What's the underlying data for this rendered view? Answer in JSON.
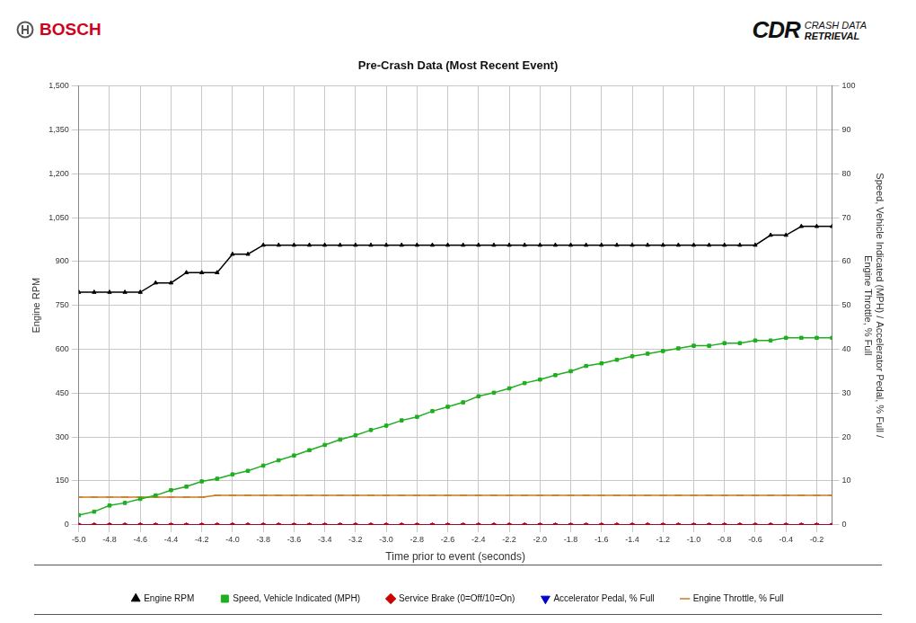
{
  "header": {
    "left": "BOSCH",
    "right_mark": "CDR",
    "right": [
      "CRASH DATA",
      "RETRIEVAL"
    ]
  },
  "chart_data": {
    "type": "line",
    "title": "Pre-Crash Data (Most Recent Event)",
    "xlabel": "Time prior to event (seconds)",
    "ylabel": "Engine RPM",
    "y2label": [
      "Speed, Vehicle Indicated (MPH) / Accelerator Pedal, % Full /",
      "Engine Throttle, % Full"
    ],
    "x": [
      -5.0,
      -4.9,
      -4.8,
      -4.7,
      -4.6,
      -4.5,
      -4.4,
      -4.3,
      -4.2,
      -4.1,
      -4.0,
      -3.9,
      -3.8,
      -3.7,
      -3.6,
      -3.5,
      -3.4,
      -3.3,
      -3.2,
      -3.1,
      -3.0,
      -2.9,
      -2.8,
      -2.7,
      -2.6,
      -2.5,
      -2.4,
      -2.3,
      -2.2,
      -2.1,
      -2.0,
      -1.9,
      -1.8,
      -1.7,
      -1.6,
      -1.5,
      -1.4,
      -1.3,
      -1.2,
      -1.1,
      -1.0,
      -0.9,
      -0.8,
      -0.7,
      -0.6,
      -0.5,
      -0.4,
      -0.3,
      -0.2,
      -0.1
    ],
    "xlim": [
      -5.0,
      -0.1
    ],
    "xticks": [
      {
        "value": -5.0,
        "label": "-5.0"
      },
      -4.8,
      -4.6,
      -4.4,
      -4.2,
      {
        "value": -4.0,
        "label": "-4.0"
      },
      -3.8,
      -3.6,
      -3.4,
      -3.2,
      {
        "value": -3.0,
        "label": "-3.0"
      },
      -2.8,
      -2.6,
      -2.4,
      -2.2,
      {
        "value": -2.0,
        "label": "-2.0"
      },
      -1.8,
      -1.6,
      -1.4,
      -1.2,
      {
        "value": -1.0,
        "label": "-1.0"
      },
      -0.8,
      -0.6,
      -0.4,
      -0.2
    ],
    "ylim": [
      0,
      1500
    ],
    "yticks": [
      0,
      150,
      300,
      450,
      600,
      750,
      900,
      {
        "value": 1050,
        "label": "1,050"
      },
      {
        "value": 1200,
        "label": "1,200"
      },
      {
        "value": 1350,
        "label": "1,350"
      },
      {
        "value": 1500,
        "label": "1,500"
      }
    ],
    "y2lim": [
      0,
      100
    ],
    "y2ticks": [
      0,
      10,
      20,
      30,
      40,
      50,
      60,
      70,
      80,
      90,
      100
    ],
    "grid": true,
    "legend": "bottom",
    "series": [
      {
        "name": "Engine RPM",
        "color": "#000000",
        "marker": "triangle",
        "axis": "y",
        "values": [
          795,
          795,
          795,
          795,
          795,
          827,
          827,
          862,
          862,
          862,
          925,
          925,
          956,
          956,
          956,
          956,
          956,
          956,
          956,
          956,
          956,
          956,
          956,
          956,
          956,
          956,
          956,
          956,
          956,
          956,
          956,
          956,
          956,
          956,
          956,
          956,
          956,
          956,
          956,
          956,
          956,
          956,
          956,
          956,
          956,
          990,
          990,
          1020,
          1020,
          1020
        ]
      },
      {
        "name": "Speed, Vehicle Indicated (MPH)",
        "color": "#1fae1f",
        "marker": "square",
        "axis": "y2",
        "values": [
          2.2,
          3,
          4.4,
          5,
          5.9,
          6.7,
          7.9,
          8.7,
          9.9,
          10.5,
          11.5,
          12.3,
          13.5,
          14.7,
          15.8,
          17,
          18.2,
          19.4,
          20.4,
          21.6,
          22.6,
          23.8,
          24.6,
          25.9,
          26.9,
          27.9,
          29.3,
          30.1,
          31.1,
          32.3,
          33.1,
          34.1,
          35,
          36.2,
          36.8,
          37.6,
          38.4,
          39,
          39.6,
          40.2,
          40.8,
          40.8,
          41.4,
          41.4,
          42,
          42,
          42.6,
          42.6,
          42.6,
          42.6
        ]
      },
      {
        "name": "Service Brake (0=Off/10=On)",
        "color": "#cc0000",
        "marker": "diamond",
        "axis": "y2",
        "values": [
          0,
          0,
          0,
          0,
          0,
          0,
          0,
          0,
          0,
          0,
          0,
          0,
          0,
          0,
          0,
          0,
          0,
          0,
          0,
          0,
          0,
          0,
          0,
          0,
          0,
          0,
          0,
          0,
          0,
          0,
          0,
          0,
          0,
          0,
          0,
          0,
          0,
          0,
          0,
          0,
          0,
          0,
          0,
          0,
          0,
          0,
          0,
          0,
          0,
          0
        ]
      },
      {
        "name": "Accelerator Pedal, % Full",
        "color": "#0000cc",
        "marker": "triangle_down",
        "axis": "y2",
        "values": [
          0,
          0,
          0,
          0,
          0,
          0,
          0,
          0,
          0,
          0,
          0,
          0,
          0,
          0,
          0,
          0,
          0,
          0,
          0,
          0,
          0,
          0,
          0,
          0,
          0,
          0,
          0,
          0,
          0,
          0,
          0,
          0,
          0,
          0,
          0,
          0,
          0,
          0,
          0,
          0,
          0,
          0,
          0,
          0,
          0,
          0,
          0,
          0,
          0,
          0
        ]
      },
      {
        "name": "Engine Throttle, % Full",
        "color": "#cc7a22",
        "marker": "dash",
        "axis": "y2",
        "values": [
          6.3,
          6.3,
          6.3,
          6.3,
          6.3,
          6.3,
          6.3,
          6.3,
          6.3,
          6.7,
          6.7,
          6.7,
          6.7,
          6.7,
          6.7,
          6.7,
          6.7,
          6.7,
          6.7,
          6.7,
          6.7,
          6.7,
          6.7,
          6.7,
          6.7,
          6.7,
          6.7,
          6.7,
          6.7,
          6.7,
          6.7,
          6.7,
          6.7,
          6.7,
          6.7,
          6.7,
          6.7,
          6.7,
          6.7,
          6.7,
          6.7,
          6.7,
          6.7,
          6.7,
          6.7,
          6.7,
          6.7,
          6.7,
          6.7,
          6.7
        ]
      }
    ]
  }
}
